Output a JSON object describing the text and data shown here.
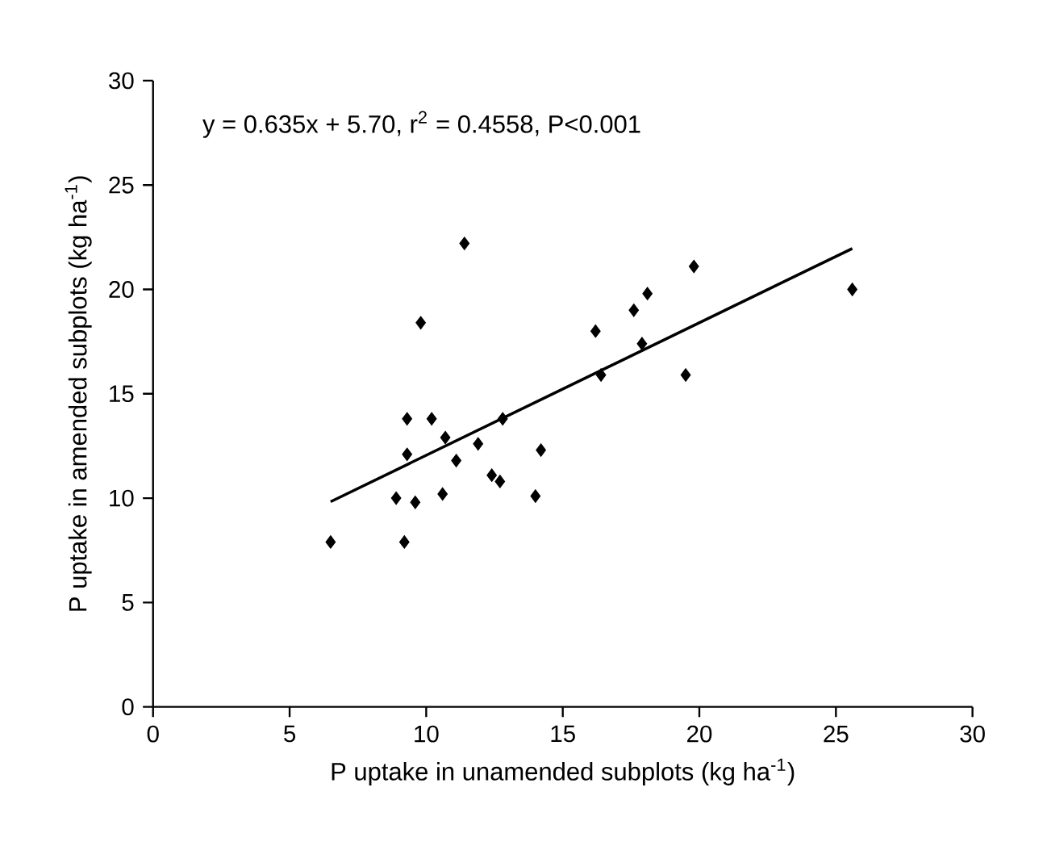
{
  "chart_data": {
    "type": "scatter",
    "xlabel": "P uptake in unamended subplots (kg ha$^{-1}$)",
    "ylabel": "P uptake in amended subplots (kg ha$^{-1}$)",
    "annotations": [
      "y = 0.635x + 5.70,  r$^{2}$ = 0.4558,  P<0.001"
    ],
    "xlim": [
      0,
      30
    ],
    "ylim": [
      0,
      30
    ],
    "xticks": [
      0,
      5,
      10,
      15,
      20,
      25,
      30
    ],
    "yticks": [
      0,
      5,
      10,
      15,
      20,
      25,
      30
    ],
    "grid": false,
    "series": [
      {
        "marker": "diamond",
        "color": "#000000",
        "x": [
          6.5,
          9.2,
          8.9,
          9.6,
          9.3,
          9.3,
          9.8,
          10.2,
          10.6,
          10.7,
          11.1,
          11.4,
          11.9,
          12.4,
          12.8,
          12.7,
          14.0,
          14.2,
          16.2,
          16.4,
          17.6,
          17.9,
          18.1,
          19.5,
          19.8,
          25.6
        ],
        "values": [
          7.9,
          7.9,
          10.0,
          9.8,
          12.1,
          13.8,
          18.4,
          13.8,
          10.2,
          12.9,
          11.8,
          22.2,
          12.6,
          11.1,
          13.8,
          10.8,
          10.1,
          12.3,
          18.0,
          15.9,
          19.0,
          17.4,
          19.8,
          15.9,
          21.1,
          20.0
        ]
      },
      {
        "type": "line",
        "marker": "none",
        "color": "#000000",
        "x": [
          6.5,
          25.6
        ],
        "values": [
          9.83,
          21.96
        ]
      }
    ]
  }
}
